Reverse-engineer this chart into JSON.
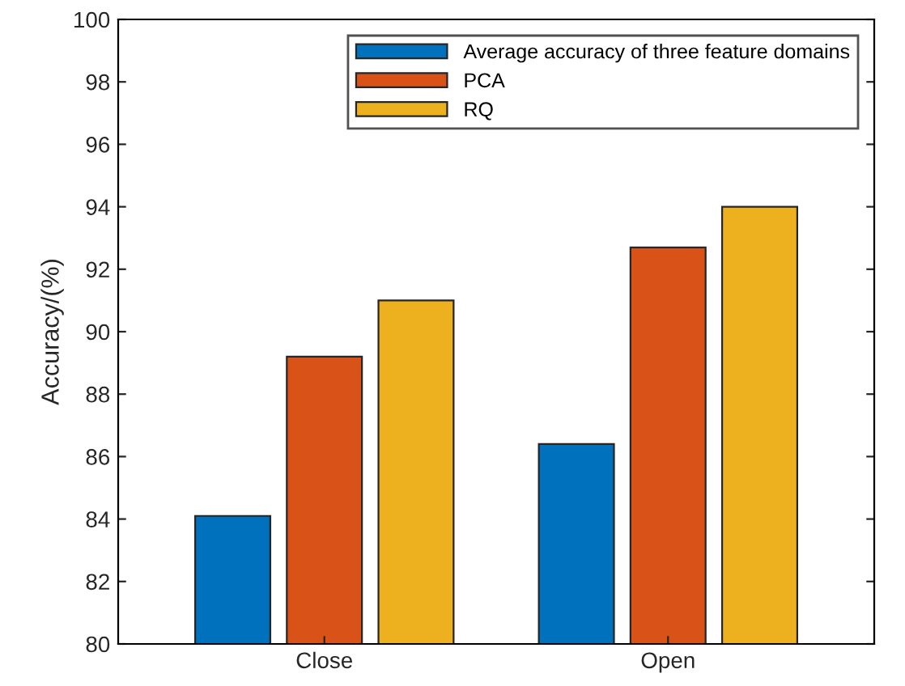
{
  "chart_data": {
    "type": "bar",
    "ylabel": "Accuracy/(%)",
    "categories": [
      "Close",
      "Open"
    ],
    "series": [
      {
        "name": "Average accuracy of three feature domains",
        "color": "#0072bd",
        "values": [
          84.1,
          86.4
        ]
      },
      {
        "name": "PCA",
        "color": "#d95319",
        "values": [
          89.2,
          92.7
        ]
      },
      {
        "name": "RQ",
        "color": "#edb120",
        "values": [
          91.0,
          94.0
        ]
      }
    ],
    "ylim": [
      80,
      100
    ],
    "yticks": [
      80,
      82,
      84,
      86,
      88,
      90,
      92,
      94,
      96,
      98,
      100
    ],
    "grid": false,
    "legend": "top right"
  }
}
